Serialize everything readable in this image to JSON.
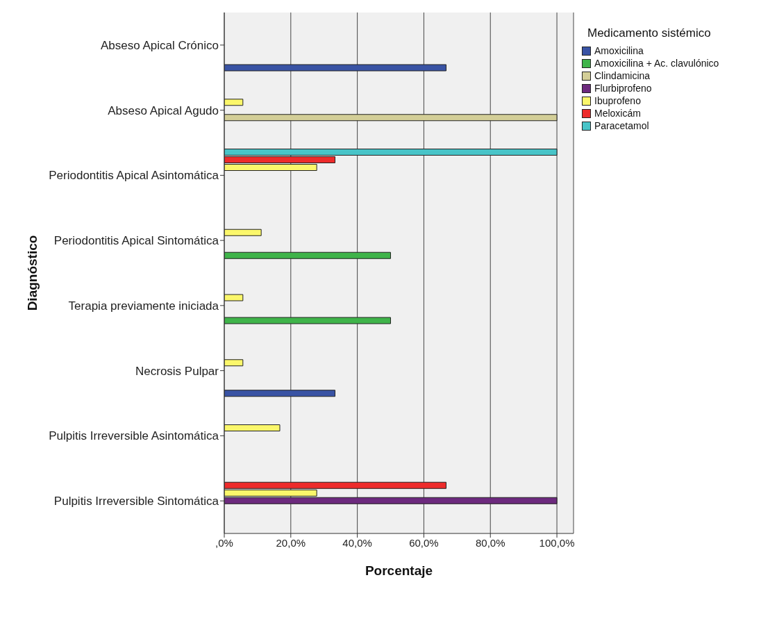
{
  "chart_data": {
    "type": "bar",
    "orientation": "horizontal",
    "xlabel": "Porcentaje",
    "ylabel": "Diagnóstico",
    "legend_title": "Medicamento sistémico",
    "legend": "top right",
    "grid": "x",
    "categories": [
      "Abseso Apical Crónico",
      "Abseso Apical Agudo",
      "Periodontitis Apical Asintomática",
      "Periodontitis Apical Sintomática",
      "Terapia previamente iniciada",
      "Necrosis Pulpar",
      "Pulpitis Irreversible Asintomática",
      "Pulpitis Irreversible Sintomática"
    ],
    "xlim": [
      0,
      105
    ],
    "xticks": [
      {
        "value": 0,
        "label": ",0%"
      },
      {
        "value": 20,
        "label": "20,0%"
      },
      {
        "value": 40,
        "label": "40,0%"
      },
      {
        "value": 60,
        "label": "60,0%"
      },
      {
        "value": 80,
        "label": "80,0%"
      },
      {
        "value": 100,
        "label": "100,0%"
      }
    ],
    "series": [
      {
        "name": "Amoxicilina",
        "color": "#3953a4",
        "values": [
          66.7,
          null,
          null,
          null,
          null,
          33.3,
          null,
          null
        ]
      },
      {
        "name": "Amoxicilina + Ac. clavulónico",
        "color": "#3fb44a",
        "values": [
          null,
          null,
          null,
          50,
          50,
          null,
          null,
          null
        ]
      },
      {
        "name": "Clindamicina",
        "color": "#d3ce97",
        "values": [
          null,
          100,
          null,
          null,
          null,
          null,
          null,
          null
        ]
      },
      {
        "name": "Flurbiprofeno",
        "color": "#6d2a7e",
        "values": [
          null,
          null,
          null,
          null,
          null,
          null,
          null,
          100
        ]
      },
      {
        "name": "Ibuprofeno",
        "color": "#fbf76b",
        "values": [
          null,
          5.6,
          27.8,
          11.1,
          5.6,
          5.6,
          16.7,
          27.8
        ]
      },
      {
        "name": "Meloxicám",
        "color": "#ed2b2b",
        "values": [
          null,
          null,
          33.3,
          null,
          null,
          null,
          null,
          66.7
        ]
      },
      {
        "name": "Paracetamol",
        "color": "#48c4c8",
        "values": [
          null,
          null,
          100,
          null,
          null,
          null,
          null,
          null
        ]
      }
    ]
  }
}
